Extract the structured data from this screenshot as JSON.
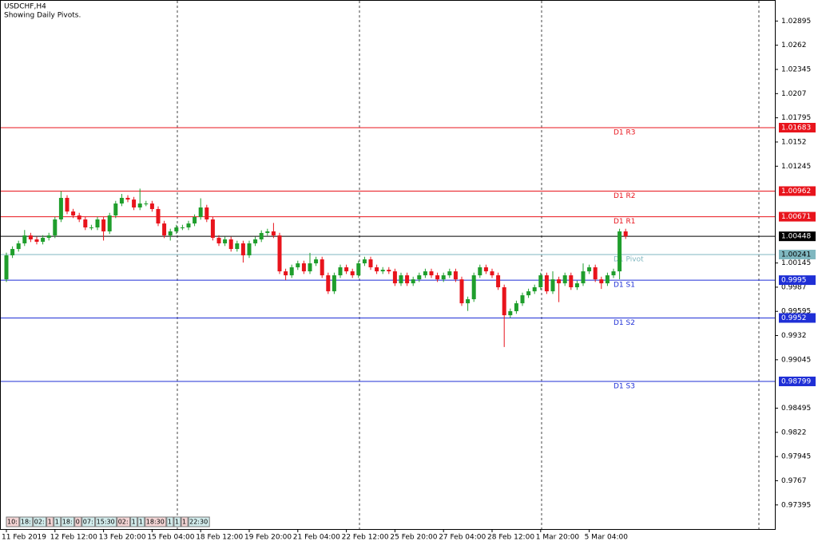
{
  "chart_data": {
    "type": "candlestick",
    "title": "USDCHF,H4",
    "subtitle": "Showing Daily Pivots.",
    "categories": [
      "11 Feb 2019",
      null,
      null,
      null,
      null,
      null,
      null,
      null,
      "12 Feb 12:00",
      null,
      null,
      null,
      null,
      null,
      null,
      null,
      "13 Feb 20:00",
      null,
      null,
      null,
      null,
      null,
      null,
      null,
      "15 Feb 04:00",
      null,
      null,
      null,
      null,
      null,
      null,
      null,
      "18 Feb 12:00",
      null,
      null,
      null,
      null,
      null,
      null,
      null,
      "19 Feb 20:00",
      null,
      null,
      null,
      null,
      null,
      null,
      null,
      "21 Feb 04:00",
      null,
      null,
      null,
      null,
      null,
      null,
      null,
      "22 Feb 12:00",
      null,
      null,
      null,
      null,
      null,
      null,
      null,
      "25 Feb 20:00",
      null,
      null,
      null,
      null,
      null,
      null,
      null,
      "27 Feb 04:00",
      null,
      null,
      null,
      null,
      null,
      null,
      null,
      "28 Feb 12:00",
      null,
      null,
      null,
      null,
      null,
      null,
      null,
      "1 Mar 20:00",
      null,
      null,
      null,
      null,
      null,
      null,
      null,
      "5 Mar 04:00",
      null,
      null,
      null,
      null,
      null,
      null
    ],
    "open": [
      0.99959,
      1.00232,
      1.00304,
      1.00368,
      1.00458,
      1.00413,
      1.00386,
      1.00431,
      1.00458,
      1.0064,
      1.00885,
      1.0073,
      1.00685,
      1.0064,
      1.00549,
      1.00549,
      1.0064,
      1.00504,
      1.00685,
      1.00821,
      1.00885,
      1.00866,
      1.00776,
      1.00821,
      1.00821,
      1.00758,
      1.00594,
      1.00458,
      1.00504,
      1.00549,
      1.00549,
      1.00594,
      1.00667,
      1.00776,
      1.0064,
      1.00431,
      1.00368,
      1.00413,
      1.00304,
      1.00368,
      1.00232,
      1.00368,
      1.00413,
      1.00486,
      1.00504,
      1.00458,
      1.0005,
      1.00005,
      1.00096,
      1.00141,
      1.0005,
      1.00141,
      1.00186,
      1.00005,
      0.99823,
      1.00005,
      1.00096,
      1.0005,
      1.00005,
      1.00141,
      1.00186,
      1.00096,
      1.0005,
      1.00068,
      1.0005,
      0.99914,
      1.00005,
      0.99914,
      0.99959,
      1.00005,
      1.0005,
      1.00005,
      0.99959,
      1.00005,
      1.0005,
      0.99959,
      0.99687,
      0.99733,
      1.00005,
      1.00096,
      1.0005,
      1.00005,
      0.99869,
      0.99551,
      0.99597,
      0.99687,
      0.99778,
      0.99823,
      0.99869,
      1.00005,
      0.99823,
      0.99959,
      0.99914,
      1.00005,
      0.99869,
      0.99914,
      1.0005,
      1.00096,
      0.99959,
      0.99914,
      1.00005,
      1.0005,
      1.00504
    ],
    "high": [
      1.00262,
      1.00334,
      1.00398,
      1.0052,
      1.00488,
      1.00443,
      1.00461,
      1.00488,
      1.0067,
      1.0096,
      1.00915,
      1.0076,
      1.00715,
      1.0067,
      1.00579,
      1.0067,
      1.0067,
      1.00715,
      1.00851,
      1.0093,
      1.00915,
      1.00896,
      1.0099,
      1.00851,
      1.00851,
      1.00788,
      1.00624,
      1.00534,
      1.00579,
      1.00579,
      1.00624,
      1.00697,
      1.0088,
      1.00806,
      1.0067,
      1.00461,
      1.00443,
      1.00443,
      1.00398,
      1.00398,
      1.00398,
      1.00443,
      1.00516,
      1.00534,
      1.006,
      1.00488,
      1.0008,
      1.00126,
      1.00171,
      1.00171,
      1.0026,
      1.00216,
      1.00216,
      1.00035,
      1.00035,
      1.00126,
      1.00126,
      1.0008,
      1.00171,
      1.00216,
      1.00216,
      1.00126,
      1.00098,
      1.00098,
      1.0008,
      1.00035,
      1.00035,
      0.99989,
      1.00035,
      1.0008,
      1.0008,
      1.00035,
      1.00035,
      1.0008,
      1.0008,
      0.99989,
      0.99763,
      1.00035,
      1.00126,
      1.00126,
      1.0008,
      1.00035,
      0.99899,
      0.99627,
      0.99717,
      0.99808,
      0.99853,
      0.99899,
      1.00035,
      1.00035,
      1.0005,
      0.99989,
      1.00035,
      1.00035,
      0.99944,
      1.0014,
      1.00126,
      1.00126,
      0.99989,
      1.00035,
      1.0008,
      1.00534,
      1.00534
    ],
    "low": [
      0.99929,
      1.00202,
      1.00274,
      1.00338,
      1.00383,
      1.00356,
      1.00356,
      1.00401,
      1.00428,
      1.0061,
      1.007,
      1.00655,
      1.0061,
      1.00519,
      1.00519,
      1.00519,
      1.004,
      1.00474,
      1.00655,
      1.00791,
      1.00836,
      1.00746,
      1.00746,
      1.00791,
      1.00728,
      1.00564,
      1.00428,
      1.004,
      1.00474,
      1.00519,
      1.00519,
      1.00564,
      1.00637,
      1.0061,
      1.00401,
      1.00338,
      1.00338,
      1.00274,
      1.00274,
      1.0015,
      1.00202,
      1.00338,
      1.00383,
      1.00456,
      1.00428,
      1.0002,
      0.9995,
      0.99975,
      1.00066,
      1.0002,
      1.0002,
      1.00111,
      0.99975,
      0.99793,
      0.99793,
      0.99975,
      1.0002,
      0.99975,
      0.99975,
      1.00111,
      1.00066,
      1.0002,
      1.0002,
      1.0002,
      0.99884,
      0.99884,
      0.99884,
      0.99884,
      0.99929,
      0.99975,
      0.99975,
      0.99929,
      0.99929,
      0.99975,
      0.99929,
      0.99657,
      0.996,
      0.99703,
      0.99975,
      1.0002,
      0.99975,
      0.99839,
      0.9919,
      0.99521,
      0.99567,
      0.99657,
      0.99748,
      0.99793,
      0.99839,
      0.99793,
      0.99793,
      0.997,
      0.99884,
      0.99839,
      0.99839,
      0.99884,
      1.0002,
      0.99929,
      0.9985,
      0.99884,
      0.99975,
      0.9996,
      1.00418
    ],
    "close": [
      1.00232,
      1.00304,
      1.00368,
      1.00458,
      1.00413,
      1.00386,
      1.00431,
      1.00458,
      1.0064,
      1.00885,
      1.0073,
      1.00685,
      1.0064,
      1.00549,
      1.00549,
      1.0064,
      1.00504,
      1.00685,
      1.00821,
      1.00885,
      1.00866,
      1.00776,
      1.00821,
      1.00821,
      1.00758,
      1.00594,
      1.00458,
      1.00504,
      1.00549,
      1.00549,
      1.00594,
      1.00667,
      1.00776,
      1.0064,
      1.00431,
      1.00368,
      1.00413,
      1.00304,
      1.00368,
      1.00232,
      1.00368,
      1.00413,
      1.00486,
      1.00504,
      1.00458,
      1.0005,
      1.00005,
      1.00096,
      1.00141,
      1.0005,
      1.00141,
      1.00186,
      1.00005,
      0.99823,
      1.00005,
      1.00096,
      1.0005,
      1.00005,
      1.00141,
      1.00186,
      1.00096,
      1.0005,
      1.00068,
      1.0005,
      0.99914,
      1.00005,
      0.99914,
      0.99959,
      1.00005,
      1.0005,
      1.00005,
      0.99959,
      1.00005,
      1.0005,
      0.99959,
      0.99687,
      0.99733,
      1.00005,
      1.00096,
      1.0005,
      1.00005,
      0.99869,
      0.99551,
      0.99597,
      0.99687,
      0.99778,
      0.99823,
      0.99869,
      1.00005,
      0.99823,
      0.99959,
      0.99914,
      1.00005,
      0.99869,
      0.99914,
      1.0005,
      1.00096,
      0.99959,
      0.99914,
      1.00005,
      1.0005,
      1.00504,
      1.00448
    ],
    "up_color": "#1f9e2c",
    "down_color": "#e8141c",
    "levels": [
      {
        "name": "D1 R3",
        "value": 1.01683,
        "color": "#e8141c"
      },
      {
        "name": "D1 R2",
        "value": 1.00962,
        "color": "#e8141c"
      },
      {
        "name": "D1 R1",
        "value": 1.00671,
        "color": "#e8141c"
      },
      {
        "name": "D1 Pivot",
        "value": 1.00241,
        "color": "#7fb7c0"
      },
      {
        "name": "D1 S1",
        "value": 0.9995,
        "color": "#1f2fd6"
      },
      {
        "name": "D1 S2",
        "value": 0.9952,
        "color": "#1f2fd6"
      },
      {
        "name": "D1 S3",
        "value": 0.98799,
        "color": "#1f2fd6"
      }
    ],
    "current_price": 1.00448,
    "ylim": [
      0.97121,
      1.03134
    ],
    "yticks": [
      1.02895,
      1.0262,
      1.02345,
      1.0207,
      1.01795,
      1.0152,
      1.01245,
      1.00145,
      0.9987,
      0.99595,
      0.9932,
      0.99045,
      0.98495,
      0.9822,
      0.97945,
      0.9767,
      0.97395
    ],
    "time_boxes": [
      "10:",
      "18:",
      "02:",
      "1",
      "1",
      "18:",
      "0",
      "07:",
      "15:30",
      "02:",
      "1",
      "1",
      "18:30",
      "1",
      "1",
      "1",
      "22:30"
    ]
  }
}
